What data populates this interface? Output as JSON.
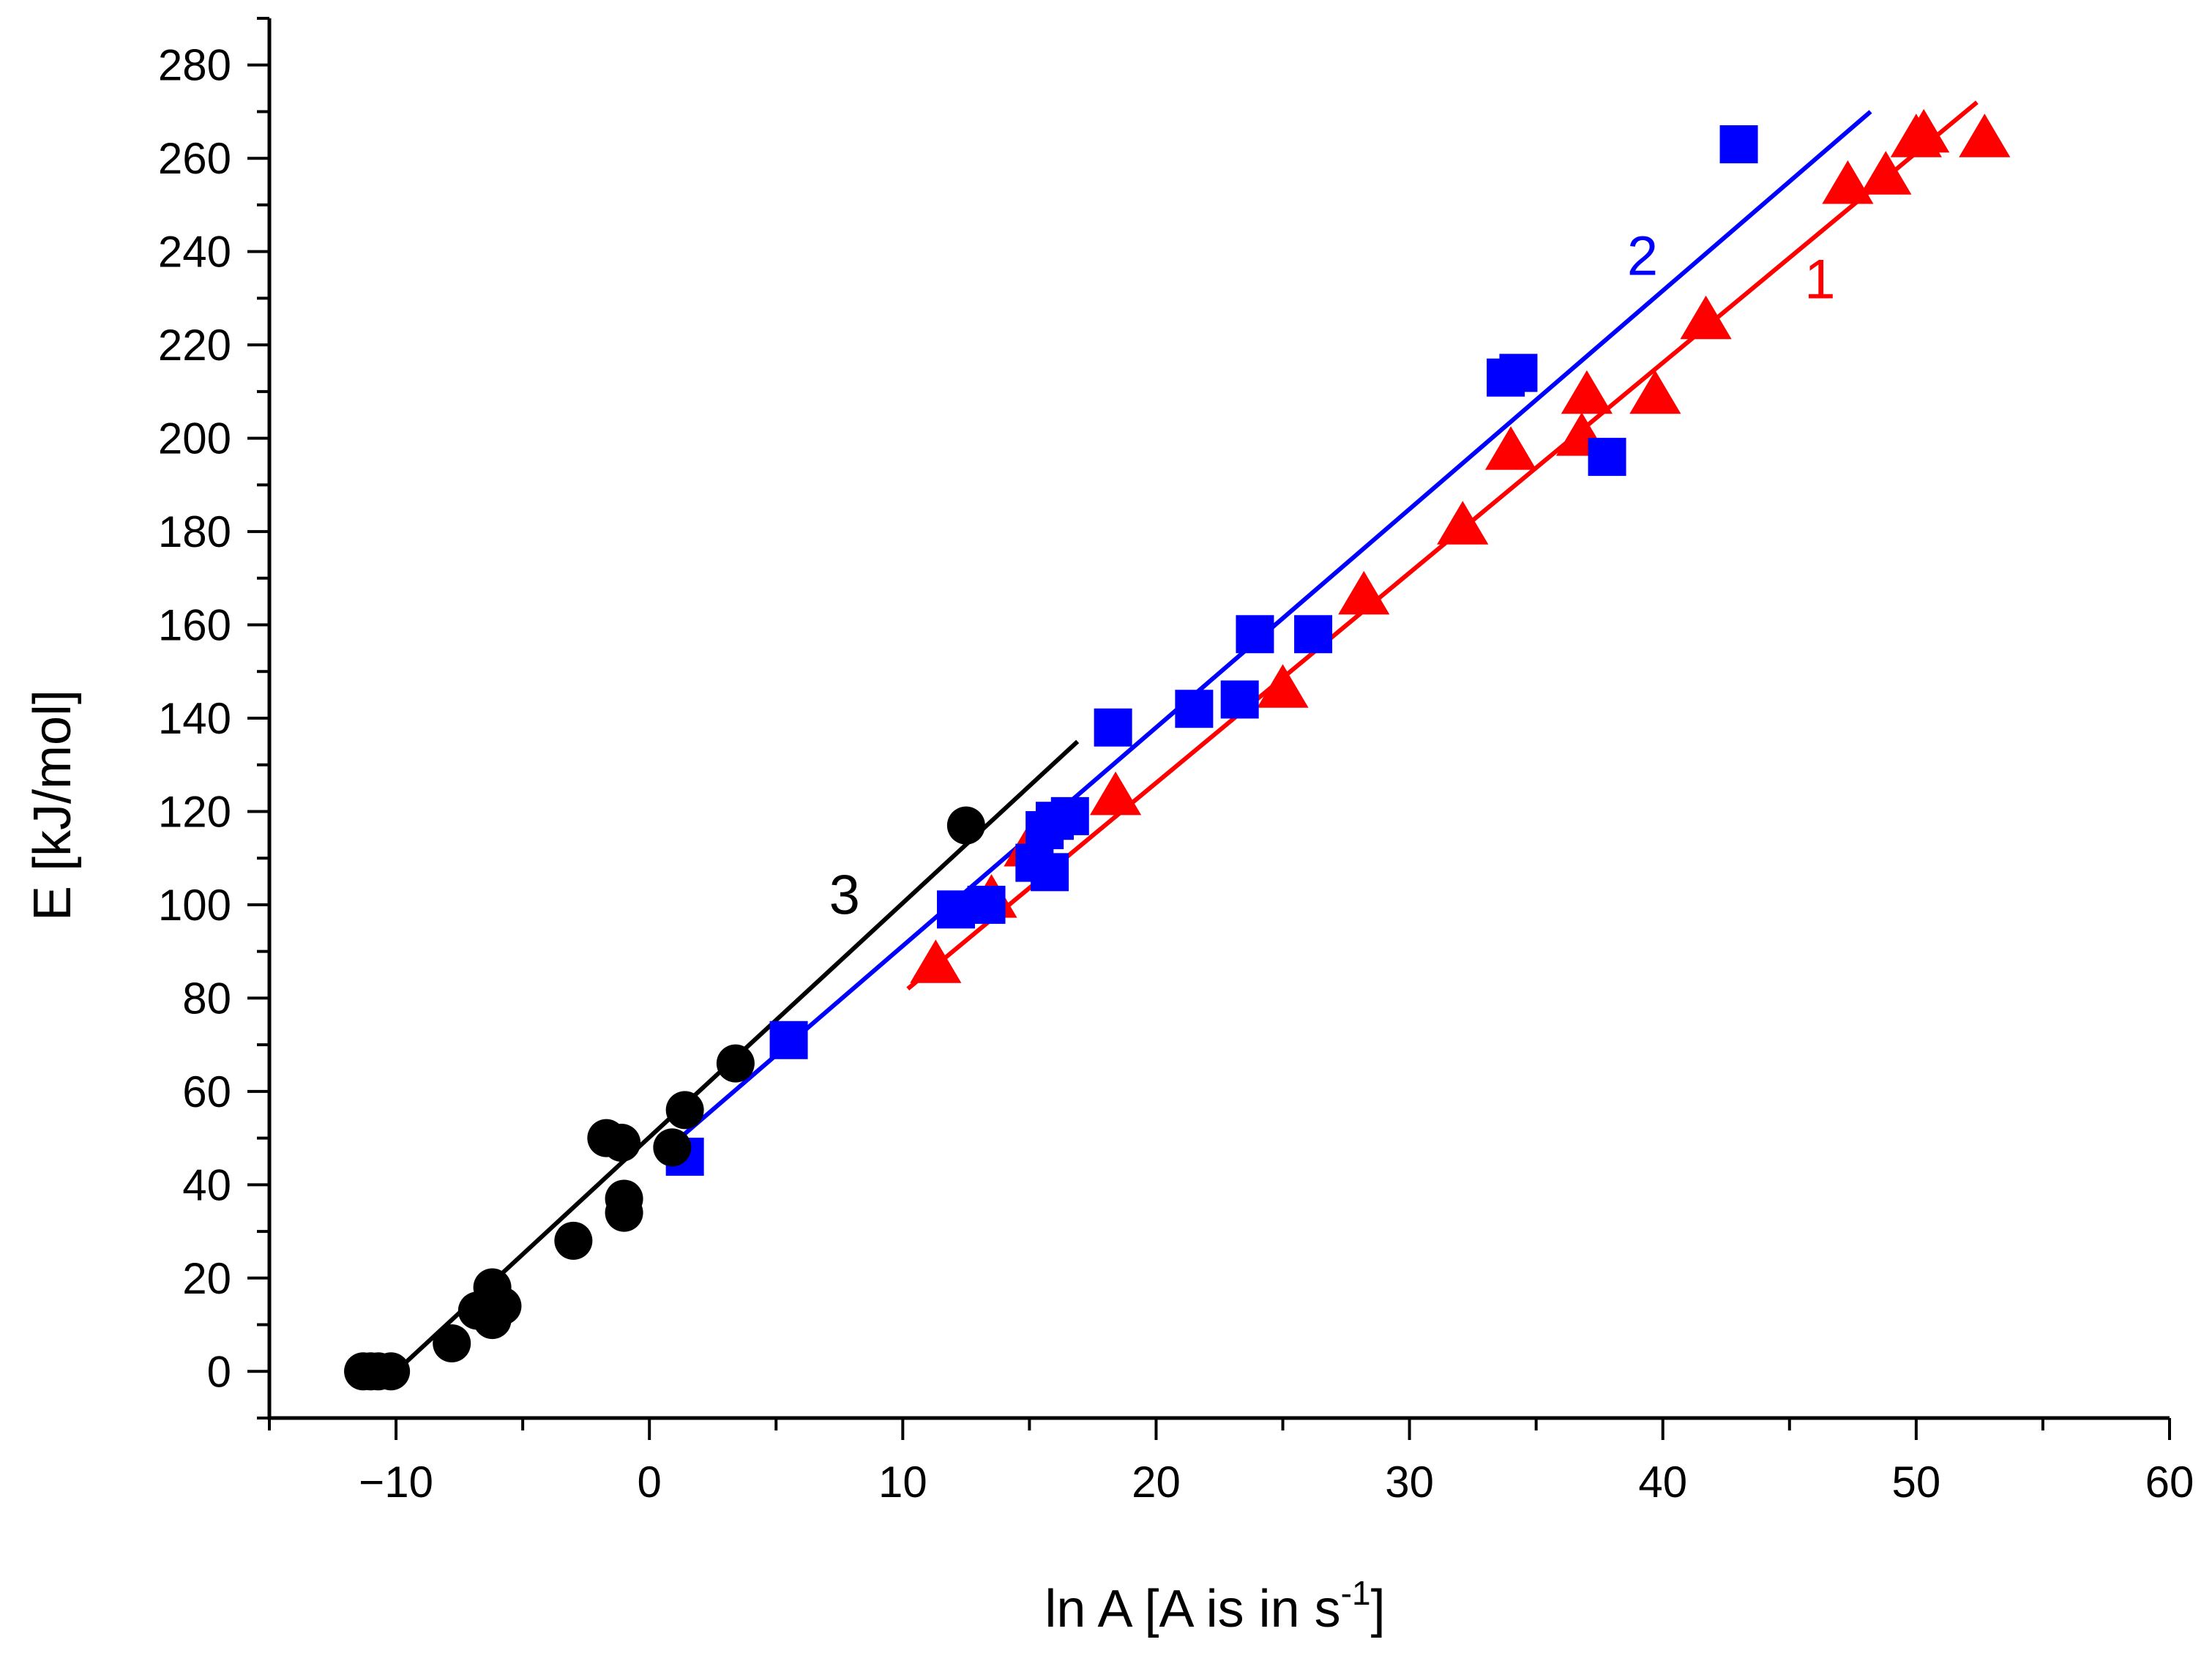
{
  "chart_data": {
    "type": "scatter",
    "title": "",
    "xlabel": "ln A [A is in s",
    "xlabel_superscript": "-1",
    "xlabel_suffix": "]",
    "ylabel": "E [kJ/mol]",
    "xlim": [
      -15,
      60
    ],
    "ylim": [
      -10,
      290
    ],
    "xticks": [
      -10,
      0,
      10,
      20,
      30,
      40,
      50,
      60
    ],
    "yticks": [
      0,
      20,
      40,
      60,
      80,
      100,
      120,
      140,
      160,
      180,
      200,
      220,
      240,
      260,
      280
    ],
    "xtick_labels": [
      "−10",
      "0",
      "10",
      "20",
      "30",
      "40",
      "50",
      "60"
    ],
    "ytick_labels": [
      "0",
      "20",
      "40",
      "60",
      "80",
      "100",
      "120",
      "140",
      "160",
      "180",
      "200",
      "220",
      "240",
      "260",
      "280"
    ],
    "grid": false,
    "legend": "none",
    "series": [
      {
        "name": "1",
        "label": "1",
        "color": "#ff0000",
        "marker": "triangle",
        "label_pos": {
          "x": 46.2,
          "y": 230
        },
        "fit_line": {
          "x": [
            10.2,
            52.4
          ],
          "y": [
            82,
            272
          ]
        },
        "points": [
          {
            "x": 11.3,
            "y": 87
          },
          {
            "x": 13.5,
            "y": 101
          },
          {
            "x": 15.0,
            "y": 112
          },
          {
            "x": 18.4,
            "y": 123
          },
          {
            "x": 25.0,
            "y": 146
          },
          {
            "x": 28.2,
            "y": 166
          },
          {
            "x": 32.1,
            "y": 181
          },
          {
            "x": 34.0,
            "y": 197
          },
          {
            "x": 36.8,
            "y": 200
          },
          {
            "x": 37.0,
            "y": 209
          },
          {
            "x": 39.7,
            "y": 209
          },
          {
            "x": 41.7,
            "y": 225
          },
          {
            "x": 47.3,
            "y": 254
          },
          {
            "x": 48.8,
            "y": 256
          },
          {
            "x": 50.0,
            "y": 264
          },
          {
            "x": 50.3,
            "y": 265
          },
          {
            "x": 52.7,
            "y": 264
          }
        ]
      },
      {
        "name": "2",
        "label": "2",
        "color": "#0000ff",
        "marker": "square",
        "label_pos": {
          "x": 39.2,
          "y": 235
        },
        "fit_line": {
          "x": [
            1.2,
            48.2
          ],
          "y": [
            50,
            270
          ]
        },
        "points": [
          {
            "x": 1.4,
            "y": 46
          },
          {
            "x": 5.5,
            "y": 71
          },
          {
            "x": 12.1,
            "y": 99
          },
          {
            "x": 13.3,
            "y": 100
          },
          {
            "x": 15.2,
            "y": 109
          },
          {
            "x": 15.6,
            "y": 116
          },
          {
            "x": 15.8,
            "y": 107
          },
          {
            "x": 16.0,
            "y": 118
          },
          {
            "x": 16.6,
            "y": 119
          },
          {
            "x": 18.3,
            "y": 138
          },
          {
            "x": 21.5,
            "y": 142
          },
          {
            "x": 23.3,
            "y": 144
          },
          {
            "x": 23.9,
            "y": 158
          },
          {
            "x": 26.2,
            "y": 158
          },
          {
            "x": 33.8,
            "y": 213
          },
          {
            "x": 34.3,
            "y": 214
          },
          {
            "x": 37.8,
            "y": 196
          },
          {
            "x": 43.0,
            "y": 263
          }
        ]
      },
      {
        "name": "3",
        "label": "3",
        "color": "#000000",
        "marker": "circle",
        "label_pos": {
          "x": 7.7,
          "y": 98
        },
        "fit_line": {
          "x": [
            -10.0,
            16.9
          ],
          "y": [
            0,
            135
          ]
        },
        "points": [
          {
            "x": -11.3,
            "y": 0
          },
          {
            "x": -11.0,
            "y": 0
          },
          {
            "x": -10.7,
            "y": 0
          },
          {
            "x": -10.2,
            "y": 0
          },
          {
            "x": -7.8,
            "y": 6
          },
          {
            "x": -6.8,
            "y": 13
          },
          {
            "x": -6.2,
            "y": 18
          },
          {
            "x": -6.2,
            "y": 11
          },
          {
            "x": -5.8,
            "y": 14
          },
          {
            "x": -3.0,
            "y": 28
          },
          {
            "x": -1.7,
            "y": 50
          },
          {
            "x": -1.1,
            "y": 49
          },
          {
            "x": -1.0,
            "y": 37
          },
          {
            "x": -1.0,
            "y": 34
          },
          {
            "x": 0.9,
            "y": 48
          },
          {
            "x": 1.4,
            "y": 56
          },
          {
            "x": 3.4,
            "y": 66
          },
          {
            "x": 12.5,
            "y": 117
          }
        ]
      }
    ]
  }
}
